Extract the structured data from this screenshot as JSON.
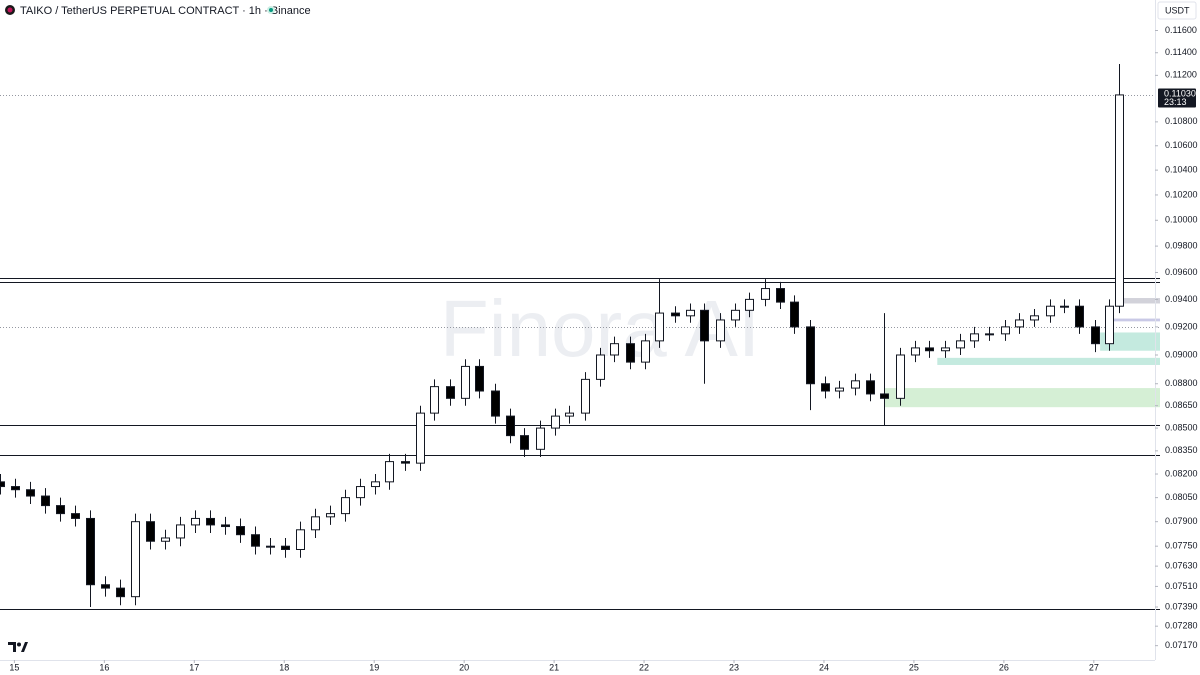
{
  "chart_data": {
    "type": "candlestick",
    "title": "TAIKO / TetherUS PERPETUAL CONTRACT · 1h · Binance",
    "currency": "USDT",
    "watermark": "Finora AI",
    "log_scale": true,
    "up_color": "#ffffff",
    "down_color": "#000000",
    "x": [
      14.84,
      15.01,
      15.17,
      15.34,
      15.51,
      15.67,
      15.84,
      16.01,
      16.17,
      16.34,
      16.51,
      16.67,
      16.84,
      17.01,
      17.17,
      17.34,
      17.51,
      17.67,
      17.84,
      18.01,
      18.17,
      18.34,
      18.51,
      18.67,
      18.84,
      19.01,
      19.17,
      19.34,
      19.51,
      19.67,
      19.84,
      20.01,
      20.17,
      20.34,
      20.51,
      20.67,
      20.84,
      21.01,
      21.17,
      21.34,
      21.51,
      21.67,
      21.84,
      22.01,
      22.17,
      22.34,
      22.51,
      22.67,
      22.84,
      23.01,
      23.17,
      23.34,
      23.51,
      23.67,
      23.84,
      24.01,
      24.17,
      24.34,
      24.51,
      24.67,
      24.84,
      25.01,
      25.17,
      25.34,
      25.51,
      25.67,
      25.84,
      26.01,
      26.17,
      26.34,
      26.51,
      26.67,
      26.84,
      27.01,
      27.17,
      27.28
    ],
    "open": [
      0.0815,
      0.0812,
      0.081,
      0.0806,
      0.08,
      0.0795,
      0.0792,
      0.0752,
      0.075,
      0.0745,
      0.079,
      0.0778,
      0.078,
      0.0788,
      0.0792,
      0.0788,
      0.0787,
      0.0782,
      0.0775,
      0.0775,
      0.0773,
      0.0785,
      0.0793,
      0.0795,
      0.0805,
      0.0812,
      0.0815,
      0.0828,
      0.0827,
      0.086,
      0.0878,
      0.087,
      0.0892,
      0.0875,
      0.0858,
      0.0845,
      0.0836,
      0.085,
      0.0858,
      0.086,
      0.0883,
      0.09,
      0.0908,
      0.0895,
      0.091,
      0.093,
      0.0928,
      0.0932,
      0.091,
      0.0925,
      0.0932,
      0.094,
      0.0948,
      0.0938,
      0.092,
      0.088,
      0.0875,
      0.0877,
      0.0882,
      0.0873,
      0.087,
      0.09,
      0.0905,
      0.0903,
      0.0905,
      0.091,
      0.0915,
      0.0915,
      0.092,
      0.0925,
      0.0928,
      0.0935,
      0.0935,
      0.092,
      0.0908,
      0.0935
    ],
    "high": [
      0.082,
      0.0817,
      0.0815,
      0.0811,
      0.0805,
      0.08,
      0.0797,
      0.0757,
      0.0755,
      0.0795,
      0.0795,
      0.0785,
      0.0793,
      0.0797,
      0.0797,
      0.0793,
      0.0792,
      0.0787,
      0.078,
      0.078,
      0.079,
      0.0798,
      0.08,
      0.081,
      0.0817,
      0.082,
      0.0833,
      0.0833,
      0.0865,
      0.0883,
      0.0883,
      0.0897,
      0.0897,
      0.088,
      0.0863,
      0.085,
      0.0855,
      0.0863,
      0.0865,
      0.0888,
      0.0905,
      0.0913,
      0.0913,
      0.0915,
      0.0955,
      0.0935,
      0.0937,
      0.0937,
      0.093,
      0.0937,
      0.0945,
      0.0955,
      0.0953,
      0.0943,
      0.0925,
      0.0885,
      0.0882,
      0.0887,
      0.0887,
      0.093,
      0.0905,
      0.091,
      0.091,
      0.091,
      0.0915,
      0.092,
      0.092,
      0.0925,
      0.093,
      0.0933,
      0.094,
      0.094,
      0.094,
      0.0925,
      0.094,
      0.113
    ],
    "low": [
      0.0807,
      0.0805,
      0.0801,
      0.0795,
      0.079,
      0.0787,
      0.0739,
      0.0745,
      0.074,
      0.074,
      0.0773,
      0.0773,
      0.0775,
      0.0783,
      0.0783,
      0.0782,
      0.0777,
      0.077,
      0.077,
      0.0768,
      0.0768,
      0.078,
      0.0788,
      0.079,
      0.08,
      0.0807,
      0.081,
      0.0822,
      0.0822,
      0.0855,
      0.0865,
      0.0865,
      0.087,
      0.0853,
      0.084,
      0.0831,
      0.0831,
      0.0845,
      0.0853,
      0.0855,
      0.0878,
      0.0895,
      0.089,
      0.089,
      0.0905,
      0.0923,
      0.0923,
      0.088,
      0.0905,
      0.092,
      0.0927,
      0.0935,
      0.0933,
      0.0915,
      0.0862,
      0.087,
      0.087,
      0.0872,
      0.0868,
      0.0852,
      0.0865,
      0.0895,
      0.0898,
      0.0898,
      0.09,
      0.0905,
      0.091,
      0.091,
      0.0915,
      0.092,
      0.0923,
      0.093,
      0.0915,
      0.0902,
      0.0903,
      0.093
    ],
    "close": [
      0.0812,
      0.081,
      0.0806,
      0.08,
      0.0795,
      0.0792,
      0.0752,
      0.075,
      0.0745,
      0.079,
      0.0778,
      0.078,
      0.0788,
      0.0792,
      0.0788,
      0.0787,
      0.0782,
      0.0775,
      0.0775,
      0.0773,
      0.0785,
      0.0793,
      0.0795,
      0.0805,
      0.0812,
      0.0815,
      0.0828,
      0.0827,
      0.086,
      0.0878,
      0.087,
      0.0892,
      0.0875,
      0.0858,
      0.0845,
      0.0836,
      0.085,
      0.0858,
      0.086,
      0.0883,
      0.09,
      0.0908,
      0.0895,
      0.091,
      0.093,
      0.0928,
      0.0932,
      0.091,
      0.0925,
      0.0932,
      0.094,
      0.0948,
      0.0938,
      0.092,
      0.088,
      0.0875,
      0.0877,
      0.0882,
      0.0873,
      0.087,
      0.09,
      0.0905,
      0.0903,
      0.0905,
      0.091,
      0.0915,
      0.0915,
      0.092,
      0.0925,
      0.0928,
      0.0935,
      0.0935,
      0.092,
      0.0908,
      0.0935,
      0.1103
    ],
    "xlim": [
      14.84,
      27.68
    ],
    "xticks": [
      15,
      16,
      17,
      18,
      19,
      20,
      21,
      22,
      23,
      24,
      25,
      26,
      27
    ],
    "ylim": [
      0.0709,
      0.1188
    ],
    "yticks": [
      {
        "value": 0.116,
        "label": "0.11600"
      },
      {
        "value": 0.114,
        "label": "0.11400"
      },
      {
        "value": 0.112,
        "label": "0.11200"
      },
      {
        "value": 0.108,
        "label": "0.10800"
      },
      {
        "value": 0.106,
        "label": "0.10600"
      },
      {
        "value": 0.104,
        "label": "0.10400"
      },
      {
        "value": 0.102,
        "label": "0.10200"
      },
      {
        "value": 0.1,
        "label": "0.10000"
      },
      {
        "value": 0.098,
        "label": "0.09800"
      },
      {
        "value": 0.096,
        "label": "0.09600"
      },
      {
        "value": 0.094,
        "label": "0.09400"
      },
      {
        "value": 0.092,
        "label": "0.09200"
      },
      {
        "value": 0.09,
        "label": "0.09000"
      },
      {
        "value": 0.088,
        "label": "0.08800"
      },
      {
        "value": 0.0865,
        "label": "0.08650"
      },
      {
        "value": 0.085,
        "label": "0.08500"
      },
      {
        "value": 0.0835,
        "label": "0.08350"
      },
      {
        "value": 0.082,
        "label": "0.08200"
      },
      {
        "value": 0.0805,
        "label": "0.08050"
      },
      {
        "value": 0.079,
        "label": "0.07900"
      },
      {
        "value": 0.0775,
        "label": "0.07750"
      },
      {
        "value": 0.0763,
        "label": "0.07630"
      },
      {
        "value": 0.0751,
        "label": "0.07510"
      },
      {
        "value": 0.0739,
        "label": "0.07390"
      },
      {
        "value": 0.0728,
        "label": "0.07280"
      },
      {
        "value": 0.0717,
        "label": "0.07170"
      }
    ],
    "price_label": {
      "value": 0.1103,
      "label": "0.11030"
    },
    "countdown": "23:13",
    "hlines": [
      {
        "value": 0.0956,
        "style": "solid"
      },
      {
        "value": 0.0953,
        "style": "solid"
      },
      {
        "value": 0.0852,
        "style": "solid"
      },
      {
        "value": 0.0832,
        "style": "solid"
      },
      {
        "value": 0.0738,
        "style": "solid"
      },
      {
        "value": 0.092,
        "style": "dotted"
      }
    ],
    "zones": [
      {
        "x_start": 27.27,
        "top": 0.0941,
        "bottom": 0.0937,
        "color": "#d2d2da"
      },
      {
        "x_start": 27.22,
        "top": 0.0926,
        "bottom": 0.0924,
        "color": "#c9c9e6"
      },
      {
        "x_start": 27.07,
        "top": 0.0916,
        "bottom": 0.0903,
        "color": "#c4eadf"
      },
      {
        "x_start": 25.26,
        "top": 0.0898,
        "bottom": 0.0893,
        "color": "#c4eadf"
      },
      {
        "x_start": 24.67,
        "top": 0.0877,
        "bottom": 0.0864,
        "color": "#d5efd5"
      }
    ]
  }
}
